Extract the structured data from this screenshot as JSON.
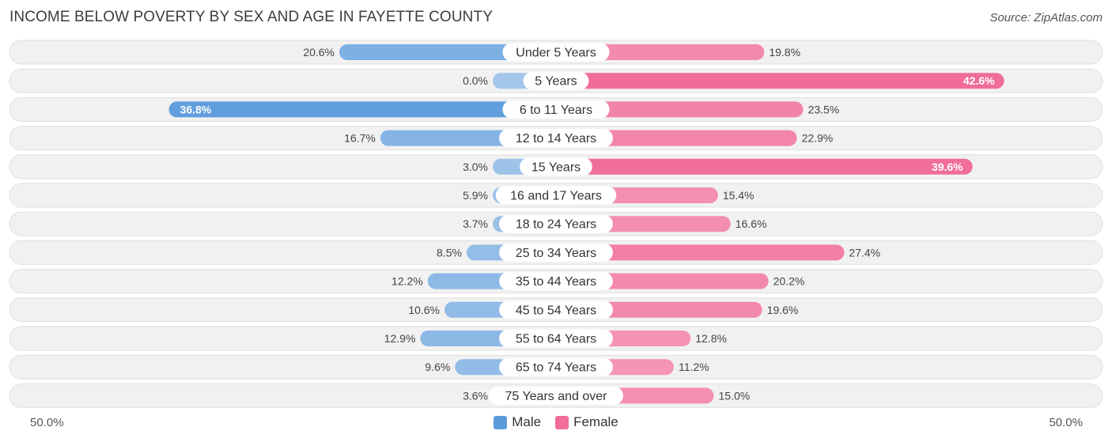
{
  "title": "INCOME BELOW POVERTY BY SEX AND AGE IN FAYETTE COUNTY",
  "source": "Source: ZipAtlas.com",
  "axis": {
    "left_label": "50.0%",
    "right_label": "50.0%"
  },
  "legend": {
    "male": "Male",
    "female": "Female"
  },
  "colors": {
    "male_strong": "#5b9bdc",
    "male_light": "#a3c6ea",
    "female_strong": "#f06d97",
    "female_light": "#f6a5bf",
    "row_bg": "#f1f1f1",
    "row_border": "#e0e0e0"
  },
  "chart_data": {
    "type": "bar",
    "orientation": "diverging-horizontal",
    "title": "INCOME BELOW POVERTY BY SEX AND AGE IN FAYETTE COUNTY",
    "xlim": [
      -50,
      50
    ],
    "categories": [
      "Under 5 Years",
      "5 Years",
      "6 to 11 Years",
      "12 to 14 Years",
      "15 Years",
      "16 and 17 Years",
      "18 to 24 Years",
      "25 to 34 Years",
      "35 to 44 Years",
      "45 to 54 Years",
      "55 to 64 Years",
      "65 to 74 Years",
      "75 Years and over"
    ],
    "series": [
      {
        "name": "Male",
        "values": [
          20.6,
          0.0,
          36.8,
          16.7,
          3.0,
          5.9,
          3.7,
          8.5,
          12.2,
          10.6,
          12.9,
          9.6,
          3.6
        ],
        "labels": [
          "20.6%",
          "0.0%",
          "36.8%",
          "16.7%",
          "3.0%",
          "5.9%",
          "3.7%",
          "8.5%",
          "12.2%",
          "10.6%",
          "12.9%",
          "9.6%",
          "3.6%"
        ]
      },
      {
        "name": "Female",
        "values": [
          19.8,
          42.6,
          23.5,
          22.9,
          39.6,
          15.4,
          16.6,
          27.4,
          20.2,
          19.6,
          12.8,
          11.2,
          15.0
        ],
        "labels": [
          "19.8%",
          "42.6%",
          "23.5%",
          "22.9%",
          "39.6%",
          "15.4%",
          "16.6%",
          "27.4%",
          "20.2%",
          "19.6%",
          "12.8%",
          "11.2%",
          "15.0%"
        ]
      }
    ]
  }
}
